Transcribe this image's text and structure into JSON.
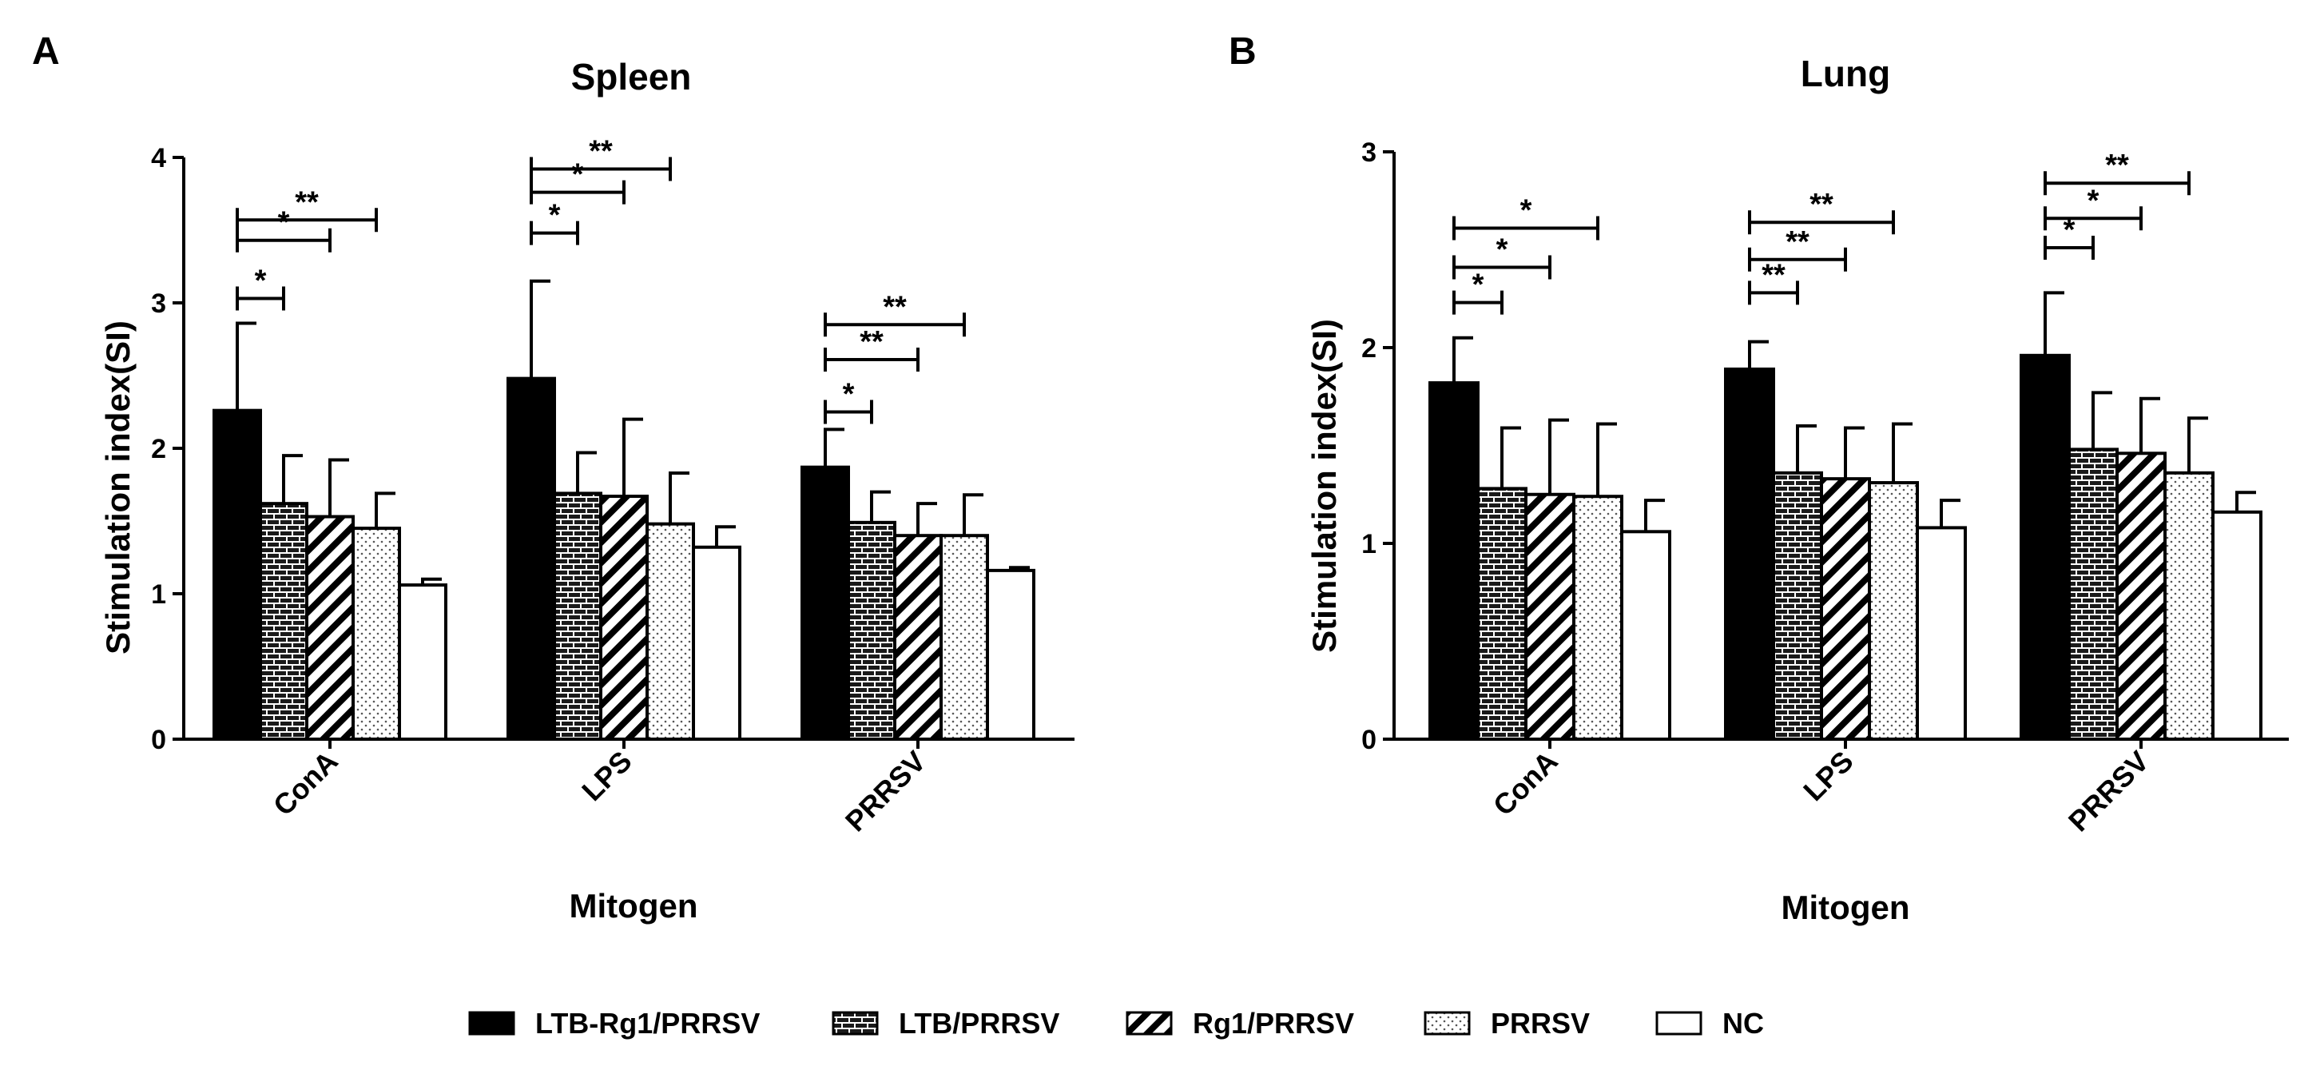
{
  "panels": [
    {
      "letter": "A",
      "title": "Spleen",
      "ylabel": "Stimulation index(SI)",
      "xlabel": "Mitogen",
      "ylim": [
        0,
        4
      ],
      "ticks": [
        "0",
        "1",
        "2",
        "3",
        "4"
      ],
      "categories": [
        "ConA",
        "LPS",
        "PRRSV"
      ],
      "values": [
        [
          2.26,
          1.62,
          1.53,
          1.45,
          1.06
        ],
        [
          2.48,
          1.69,
          1.67,
          1.48,
          1.32
        ],
        [
          1.87,
          1.49,
          1.4,
          1.4,
          1.16
        ]
      ],
      "errors": [
        [
          0.6,
          0.33,
          0.39,
          0.24,
          0.04
        ],
        [
          0.67,
          0.28,
          0.53,
          0.35,
          0.14
        ],
        [
          0.26,
          0.21,
          0.22,
          0.28,
          0.02
        ]
      ],
      "brackets": [
        [
          {
            "to": 1,
            "y": 3.03,
            "label": "*"
          },
          {
            "to": 2,
            "y": 3.43,
            "label": "*"
          },
          {
            "to": 3,
            "y": 3.57,
            "label": "**"
          }
        ],
        [
          {
            "to": 1,
            "y": 3.48,
            "label": "*"
          },
          {
            "to": 2,
            "y": 3.76,
            "label": "*"
          },
          {
            "to": 3,
            "y": 3.92,
            "label": "**"
          }
        ],
        [
          {
            "to": 1,
            "y": 2.25,
            "label": "*"
          },
          {
            "to": 2,
            "y": 2.61,
            "label": "**"
          },
          {
            "to": 3,
            "y": 2.85,
            "label": "**"
          }
        ]
      ]
    },
    {
      "letter": "B",
      "title": "Lung",
      "ylabel": "Stimulation index(SI)",
      "xlabel": "Mitogen",
      "ylim": [
        0,
        3
      ],
      "ticks": [
        "0",
        "1",
        "2",
        "3"
      ],
      "categories": [
        "ConA",
        "LPS",
        "PRRSV"
      ],
      "values": [
        [
          1.82,
          1.28,
          1.25,
          1.24,
          1.06
        ],
        [
          1.89,
          1.36,
          1.33,
          1.31,
          1.08
        ],
        [
          1.96,
          1.48,
          1.46,
          1.36,
          1.16
        ]
      ],
      "errors": [
        [
          0.23,
          0.31,
          0.38,
          0.37,
          0.16
        ],
        [
          0.14,
          0.24,
          0.26,
          0.3,
          0.14
        ],
        [
          0.32,
          0.29,
          0.28,
          0.28,
          0.1
        ]
      ],
      "brackets": [
        [
          {
            "to": 1,
            "y": 2.23,
            "label": "*"
          },
          {
            "to": 2,
            "y": 2.41,
            "label": "*"
          },
          {
            "to": 3,
            "y": 2.61,
            "label": "*"
          }
        ],
        [
          {
            "to": 1,
            "y": 2.28,
            "label": "**"
          },
          {
            "to": 2,
            "y": 2.45,
            "label": "**"
          },
          {
            "to": 3,
            "y": 2.64,
            "label": "**"
          }
        ],
        [
          {
            "to": 1,
            "y": 2.51,
            "label": "*"
          },
          {
            "to": 2,
            "y": 2.66,
            "label": "*"
          },
          {
            "to": 3,
            "y": 2.84,
            "label": "**"
          }
        ]
      ]
    }
  ],
  "legend": [
    {
      "name": "LTB-Rg1/PRRSV",
      "pattern": "solid"
    },
    {
      "name": "LTB/PRRSV",
      "pattern": "brick"
    },
    {
      "name": "Rg1/PRRSV",
      "pattern": "diagonal"
    },
    {
      "name": "PRRSV",
      "pattern": "dots"
    },
    {
      "name": "NC",
      "pattern": "empty"
    }
  ],
  "chart_data": [
    {
      "type": "bar",
      "title": "Spleen",
      "xlabel": "Mitogen",
      "ylabel": "Stimulation index(SI)",
      "ylim": [
        0,
        4
      ],
      "categories": [
        "ConA",
        "LPS",
        "PRRSV"
      ],
      "series": [
        {
          "name": "LTB-Rg1/PRRSV",
          "values": [
            2.26,
            2.48,
            1.87
          ],
          "error": [
            0.6,
            0.67,
            0.26
          ]
        },
        {
          "name": "LTB/PRRSV",
          "values": [
            1.62,
            1.69,
            1.49
          ],
          "error": [
            0.33,
            0.28,
            0.21
          ]
        },
        {
          "name": "Rg1/PRRSV",
          "values": [
            1.53,
            1.67,
            1.4
          ],
          "error": [
            0.39,
            0.53,
            0.22
          ]
        },
        {
          "name": "PRRSV",
          "values": [
            1.45,
            1.48,
            1.4
          ],
          "error": [
            0.24,
            0.35,
            0.28
          ]
        },
        {
          "name": "NC",
          "values": [
            1.06,
            1.32,
            1.16
          ],
          "error": [
            0.04,
            0.14,
            0.02
          ]
        }
      ],
      "annotations": [
        "*",
        "*",
        "**",
        "*",
        "*",
        "**",
        "*",
        "**",
        "**"
      ]
    },
    {
      "type": "bar",
      "title": "Lung",
      "xlabel": "Mitogen",
      "ylabel": "Stimulation index(SI)",
      "ylim": [
        0,
        3
      ],
      "categories": [
        "ConA",
        "LPS",
        "PRRSV"
      ],
      "series": [
        {
          "name": "LTB-Rg1/PRRSV",
          "values": [
            1.82,
            1.89,
            1.96
          ],
          "error": [
            0.23,
            0.14,
            0.32
          ]
        },
        {
          "name": "LTB/PRRSV",
          "values": [
            1.28,
            1.36,
            1.48
          ],
          "error": [
            0.31,
            0.24,
            0.29
          ]
        },
        {
          "name": "Rg1/PRRSV",
          "values": [
            1.25,
            1.33,
            1.46
          ],
          "error": [
            0.38,
            0.26,
            0.28
          ]
        },
        {
          "name": "PRRSV",
          "values": [
            1.24,
            1.31,
            1.36
          ],
          "error": [
            0.37,
            0.3,
            0.28
          ]
        },
        {
          "name": "NC",
          "values": [
            1.06,
            1.08,
            1.16
          ],
          "error": [
            0.16,
            0.14,
            0.1
          ]
        }
      ],
      "annotations": [
        "*",
        "*",
        "*",
        "**",
        "**",
        "**",
        "*",
        "*",
        "**"
      ]
    }
  ]
}
